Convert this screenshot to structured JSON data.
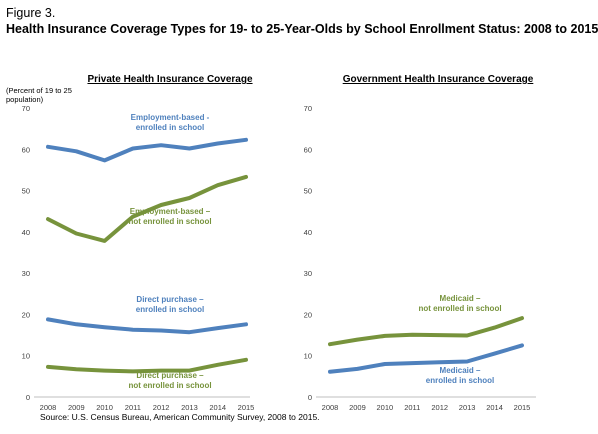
{
  "figure_label": "Figure 3.",
  "figure_title": "Health Insurance Coverage Types for 19- to 25-Year-Olds by School Enrollment Status: 2008 to 2015",
  "source": "Source: U.S. Census Bureau, American Community Survey, 2008 to 2015.",
  "colors": {
    "blue": "#4F81BD",
    "green": "#77933C",
    "tick": "#404040"
  },
  "chart_data": [
    {
      "type": "line",
      "title": "Private Health Insurance Coverage",
      "ylabel": "(Percent of 19 to 25 population)",
      "ylabel_lines": [
        "(Percent of 19 to 25",
        "population)"
      ],
      "x": [
        "2008",
        "2009",
        "2010",
        "2011",
        "2012",
        "2013",
        "2014",
        "2015"
      ],
      "yticks": [
        "0",
        "10",
        "20",
        "30",
        "40",
        "50",
        "60",
        "70"
      ],
      "ylim": [
        0,
        70
      ],
      "grid": false,
      "series": [
        {
          "name": "Employment-based - enrolled in school",
          "label_lines": [
            "Employment-based -",
            "enrolled in school"
          ],
          "color": "#4F81BD",
          "values": [
            60.6,
            59.5,
            57.3,
            60.2,
            61.0,
            60.2,
            61.4,
            62.3
          ]
        },
        {
          "name": "Employment-based – not enrolled in school",
          "label_lines": [
            "Employment-based –",
            "not enrolled in school"
          ],
          "color": "#77933C",
          "values": [
            43.1,
            39.6,
            37.8,
            43.7,
            46.5,
            48.2,
            51.3,
            53.3
          ]
        },
        {
          "name": "Direct purchase – enrolled in school",
          "label_lines": [
            "Direct purchase –",
            "enrolled in school"
          ],
          "color": "#4F81BD",
          "values": [
            18.8,
            17.6,
            16.9,
            16.3,
            16.1,
            15.7,
            16.7,
            17.6
          ]
        },
        {
          "name": "Direct purchase – not enrolled in school",
          "label_lines": [
            "Direct purchase –",
            "not enrolled in school"
          ],
          "color": "#77933C",
          "values": [
            7.3,
            6.7,
            6.4,
            6.2,
            6.4,
            6.4,
            7.8,
            9.0
          ]
        }
      ]
    },
    {
      "type": "line",
      "title": "Government Health Insurance Coverage",
      "x": [
        "2008",
        "2009",
        "2010",
        "2011",
        "2012",
        "2013",
        "2014",
        "2015"
      ],
      "yticks": [
        "0",
        "10",
        "20",
        "30",
        "40",
        "50",
        "60",
        "70"
      ],
      "ylim": [
        0,
        70
      ],
      "grid": false,
      "series": [
        {
          "name": "Medicaid – not enrolled in school",
          "label_lines": [
            "Medicaid –",
            "not enrolled in school"
          ],
          "color": "#77933C",
          "values": [
            12.8,
            13.9,
            14.8,
            15.1,
            15.0,
            14.9,
            16.8,
            19.1
          ]
        },
        {
          "name": "Medicaid – enrolled in school",
          "label_lines": [
            "Medicaid –",
            "enrolled in school"
          ],
          "color": "#4F81BD",
          "values": [
            6.1,
            6.8,
            8.0,
            8.2,
            8.4,
            8.6,
            10.5,
            12.5
          ]
        }
      ]
    }
  ]
}
